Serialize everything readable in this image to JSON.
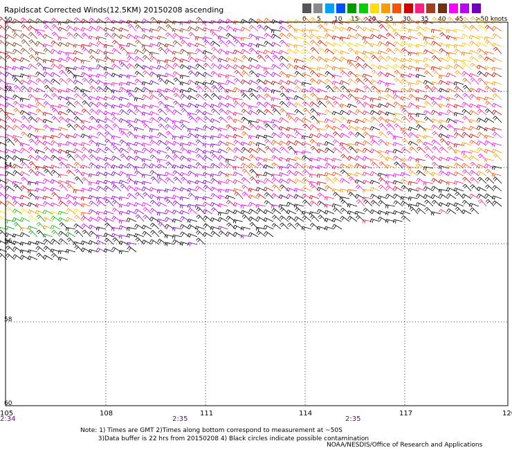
{
  "title": "Rapidscat Corrected Winds(12.5KM) 20150208 ascending",
  "legend": {
    "labels": [
      "0",
      "5",
      "10",
      "15",
      "20",
      "25",
      "30",
      "35",
      "40",
      "45",
      ">50 knots"
    ],
    "colors": [
      "#555555",
      "#8a8a8a",
      "#00a0ff",
      "#0050ff",
      "#009a00",
      "#00d000",
      "#ffe000",
      "#ff9a00",
      "#ff5000",
      "#d00000",
      "#ff2080",
      "#a04020",
      "#703010",
      "#ff00ff",
      "#c000ff",
      "#7000c0"
    ]
  },
  "map": {
    "lon_labels": [
      "105",
      "108",
      "111",
      "114",
      "117",
      "120"
    ],
    "lat_labels": [
      "50",
      "52",
      "54",
      "56",
      "58",
      "60"
    ],
    "time_labels": [
      "2:34",
      "2:35",
      "2:35"
    ]
  },
  "notes": "Note: 1) Times are GMT 2)Times along bottom correspond to measurement at ~50S\n         3)Data buffer is 22 hrs from 20150208 4) Black circles indicate possible contamination",
  "credit": "NOAA/NESDIS/Office of Research and Applications"
}
